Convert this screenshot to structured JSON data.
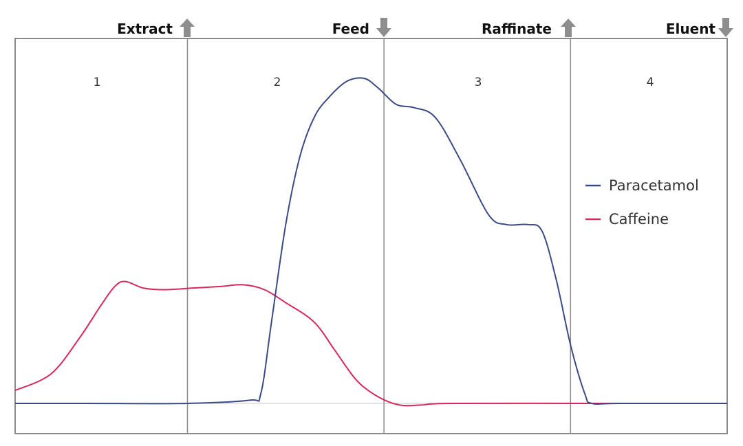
{
  "colors": {
    "paracetamol": "#3a4a86",
    "caffeine": "#d6285a",
    "frame": "#8a8a8a",
    "arrow": "#8e8e8e"
  },
  "ports": [
    {
      "label": "Extract",
      "direction": "up"
    },
    {
      "label": "Feed",
      "direction": "down"
    },
    {
      "label": "Raffinate",
      "direction": "up"
    },
    {
      "label": "Eluent",
      "direction": "down"
    }
  ],
  "zones": [
    "1",
    "2",
    "3",
    "4"
  ],
  "legend": [
    "Paracetamol",
    "Caffeine"
  ],
  "chart_data": {
    "type": "line",
    "x_range": [
      0,
      1
    ],
    "y_range": [
      0,
      1
    ],
    "zone_boundaries": [
      0.242,
      0.518,
      0.78
    ],
    "grid": false,
    "legend_position": "right",
    "series": [
      {
        "name": "Paracetamol",
        "points": [
          [
            0.0,
            0.0
          ],
          [
            0.1,
            0.0
          ],
          [
            0.242,
            0.0
          ],
          [
            0.33,
            0.01
          ],
          [
            0.345,
            0.03
          ],
          [
            0.36,
            0.25
          ],
          [
            0.38,
            0.55
          ],
          [
            0.4,
            0.76
          ],
          [
            0.42,
            0.88
          ],
          [
            0.44,
            0.94
          ],
          [
            0.465,
            0.99
          ],
          [
            0.49,
            1.0
          ],
          [
            0.51,
            0.97
          ],
          [
            0.535,
            0.92
          ],
          [
            0.56,
            0.91
          ],
          [
            0.59,
            0.88
          ],
          [
            0.625,
            0.75
          ],
          [
            0.665,
            0.58
          ],
          [
            0.69,
            0.55
          ],
          [
            0.72,
            0.55
          ],
          [
            0.74,
            0.53
          ],
          [
            0.76,
            0.38
          ],
          [
            0.78,
            0.18
          ],
          [
            0.8,
            0.03
          ],
          [
            0.81,
            0.0
          ],
          [
            0.85,
            0.0
          ],
          [
            1.0,
            0.0
          ]
        ]
      },
      {
        "name": "Caffeine",
        "points": [
          [
            0.0,
            0.04
          ],
          [
            0.05,
            0.09
          ],
          [
            0.09,
            0.2
          ],
          [
            0.12,
            0.3
          ],
          [
            0.14,
            0.36
          ],
          [
            0.155,
            0.375
          ],
          [
            0.18,
            0.355
          ],
          [
            0.21,
            0.35
          ],
          [
            0.25,
            0.355
          ],
          [
            0.29,
            0.36
          ],
          [
            0.32,
            0.365
          ],
          [
            0.35,
            0.35
          ],
          [
            0.38,
            0.31
          ],
          [
            0.42,
            0.25
          ],
          [
            0.45,
            0.16
          ],
          [
            0.48,
            0.07
          ],
          [
            0.51,
            0.02
          ],
          [
            0.54,
            -0.005
          ],
          [
            0.57,
            -0.005
          ],
          [
            0.61,
            0.0
          ],
          [
            0.8,
            0.0
          ],
          [
            1.0,
            0.0
          ]
        ]
      }
    ]
  }
}
